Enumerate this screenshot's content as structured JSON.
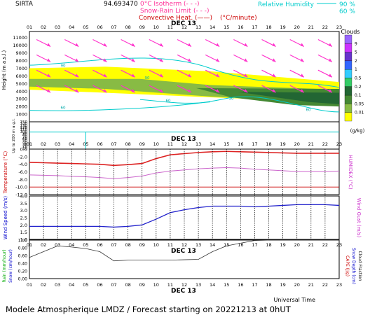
{
  "header": {
    "station": "SIRTA",
    "coords": "94.693470",
    "legend": [
      {
        "label": "0°C Isotherm",
        "sample": "(- - -)",
        "color": "#ff3399"
      },
      {
        "label": "Snow-Rain Limit",
        "sample": "(- - -)",
        "color": "#ff3399"
      },
      {
        "label": "Convective Heat.",
        "sample": "(——)",
        "color": "#cc0000",
        "unit": "(°C/minute)"
      }
    ],
    "rh_legend": {
      "label": "Relative Humidity",
      "values": [
        "90 %",
        "60 %"
      ],
      "color": "#00cccc"
    }
  },
  "hours": [
    "01",
    "02",
    "03",
    "04",
    "05",
    "06",
    "07",
    "08",
    "09",
    "10",
    "11",
    "12",
    "13",
    "14",
    "15",
    "16",
    "17",
    "18",
    "19",
    "20",
    "21",
    "22",
    "23"
  ],
  "date_label": "DEC 13",
  "footer": "Modele Atmospherique LMDZ / Forecast starting on 20221213 at 0hUT",
  "xaxis_title": "Universal Time",
  "chart_data": [
    {
      "type": "heatmap",
      "name": "clouds",
      "ylabel": "Height (m a.s.l.)",
      "yticks_upper": [
        1000,
        2000,
        3000,
        4000,
        5000,
        6000,
        7000,
        8000,
        9000,
        10000,
        11000
      ],
      "ylabel_lower": "Up to 200 m a.g.l.",
      "yticks_lower": [
        10,
        20,
        30,
        40,
        50,
        60,
        70,
        80,
        90,
        100,
        110,
        120,
        130,
        140,
        150
      ],
      "colorbar": {
        "title": "Clouds",
        "unit": "(g/kg)",
        "labels": [
          "9",
          "5",
          "2",
          "1",
          "0.5",
          "0.2",
          "0.1",
          "0.05",
          "0.01"
        ],
        "colors": [
          "#9966ff",
          "#cc33ff",
          "#6633cc",
          "#3366ff",
          "#33ccff",
          "#33cc66",
          "#226633",
          "#448833",
          "#88bb44",
          "#ffff00"
        ]
      },
      "rh_contour_labels": [
        "90",
        "90",
        "60",
        "60",
        "30",
        "60"
      ],
      "wind_arrows": 1
    },
    {
      "type": "line",
      "name": "temperature",
      "ylabel": "Temperature (°C)",
      "ylabel_right": "HUMIDEX (°C)",
      "yticks": [
        "0.0",
        "-2.0",
        "-4.0",
        "-6.0",
        "-8.0",
        "-10.0",
        "-12.0"
      ],
      "ylim": [
        -12,
        0
      ],
      "series": [
        {
          "values": [
            -3.5,
            -3.6,
            -3.7,
            -3.8,
            -3.9,
            -4.0,
            -4.3,
            -4.1,
            -3.8,
            -2.5,
            -1.5,
            -1.2,
            -0.9,
            -0.7,
            -0.6,
            -0.7,
            -0.8,
            -0.9,
            -1.0,
            -1.1,
            -1.1,
            -1.1,
            -1.1
          ],
          "color": "#dd2222"
        },
        {
          "values": [
            -6.8,
            -6.9,
            -7.0,
            -7.2,
            -7.3,
            -7.5,
            -7.8,
            -7.5,
            -7.1,
            -6.3,
            -5.8,
            -5.5,
            -5.2,
            -5.0,
            -4.9,
            -5.0,
            -5.3,
            -5.5,
            -5.7,
            -5.9,
            -5.9,
            -5.9,
            -5.8
          ],
          "color": "#cc66cc"
        }
      ],
      "reference_line": -10
    },
    {
      "type": "line",
      "name": "wind",
      "ylabel": "Wind Speed (m/s)",
      "ylabel_right": "Wind Gust (m/s)",
      "yticks": [
        "4.0",
        "3.5",
        "3.0",
        "2.5",
        "2.0",
        "1.5",
        "1.0"
      ],
      "ylim": [
        1.0,
        4.0
      ],
      "series": [
        {
          "values": [
            1.9,
            1.9,
            1.9,
            1.9,
            1.9,
            1.9,
            1.85,
            1.9,
            2.0,
            2.4,
            2.85,
            3.05,
            3.2,
            3.3,
            3.3,
            3.3,
            3.25,
            3.3,
            3.35,
            3.4,
            3.4,
            3.4,
            3.35
          ],
          "color": "#2222cc"
        }
      ]
    },
    {
      "type": "line",
      "name": "precipitation",
      "ylabel": "Rain (mm/hour)",
      "ylabel_snow": "Snow (cm/hour)",
      "ylabel_right": "CAPE (J/g)",
      "ylabel_right2": "Snow Depth (cm)",
      "ylabel_right3": "Cloud Fraction",
      "yticks": [
        "1.00",
        "0.80",
        "0.60",
        "0.40",
        "0.20",
        "0.00"
      ],
      "ylim": [
        0,
        1
      ],
      "series": [
        {
          "values": [
            0.55,
            0.7,
            0.85,
            0.82,
            0.78,
            0.7,
            0.46,
            0.48,
            0.48,
            0.48,
            0.48,
            0.49,
            0.5,
            0.7,
            0.85,
            0.92,
            0.99,
            1.0,
            1.0,
            1.0,
            1.0,
            1.0,
            1.0
          ],
          "color": "#333333"
        }
      ]
    }
  ]
}
